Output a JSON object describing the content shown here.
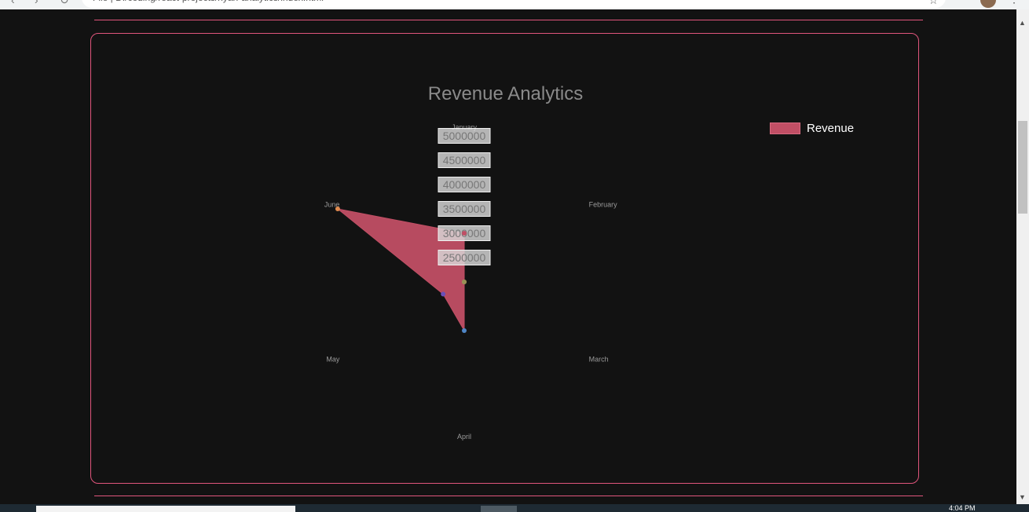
{
  "browser": {
    "address": "File  |  D:/coding/react-projects/hyan-analytics/index.html",
    "star_glyph": "☆",
    "menu_glyph": "⋮"
  },
  "chart_data": {
    "type": "radar",
    "title": "Revenue Analytics",
    "categories": [
      "January",
      "February",
      "March",
      "April",
      "May",
      "June"
    ],
    "radial_ticks": [
      "2500000",
      "3000000",
      "3500000",
      "4000000",
      "4500000",
      "5000000"
    ],
    "radial_range": [
      2000000,
      5000000
    ],
    "series": [
      {
        "name": "Revenue",
        "values": [
          3000000,
          2000000,
          2000000,
          3000000,
          2500000,
          5000000
        ],
        "fill": "#c14f65",
        "point_colors": [
          "#c14f65",
          "#b9b27a",
          "#9a8f55",
          "#4f86c6",
          "#6b4fb8",
          "#e08b4f"
        ]
      }
    ],
    "legend_position": "top-right",
    "grid": false
  },
  "taskbar": {
    "clock": "4:04 PM"
  },
  "colors": {
    "accent": "#e0557c",
    "background": "#121212"
  }
}
